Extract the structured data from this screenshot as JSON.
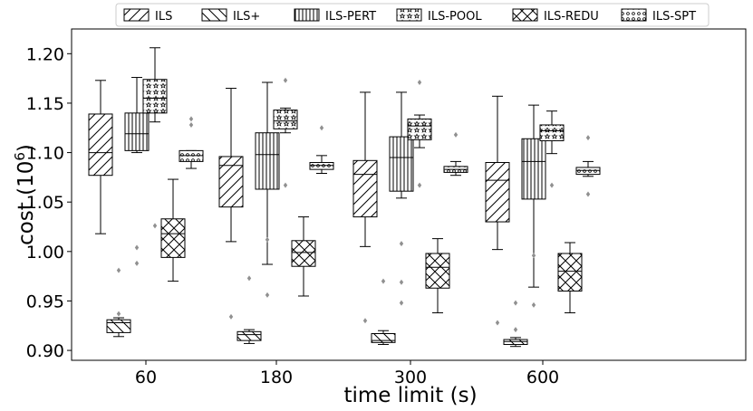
{
  "chart_data": {
    "type": "boxplot",
    "xlabel": "time limit (s)",
    "ylabel": "cost (10",
    "ylabel_sup": "6",
    "ylabel_close": ")",
    "categories": [
      "60",
      "180",
      "300",
      "600"
    ],
    "ylim": [
      0.89,
      1.225
    ],
    "yticks": [
      0.9,
      0.95,
      1.0,
      1.05,
      1.1,
      1.15,
      1.2
    ],
    "ytick_labels": [
      "0.90",
      "0.95",
      "1.00",
      "1.05",
      "1.10",
      "1.15",
      "1.20"
    ],
    "grid": false,
    "legend_position": "top",
    "series": [
      {
        "name": "ILS",
        "hatch": "diag-up",
        "boxes": [
          {
            "category": "60",
            "whisker_low": 1.018,
            "q1": 1.077,
            "median": 1.1,
            "q3": 1.139,
            "whisker_high": 1.173,
            "outliers": []
          },
          {
            "category": "180",
            "whisker_low": 1.01,
            "q1": 1.045,
            "median": 1.087,
            "q3": 1.096,
            "whisker_high": 1.165,
            "outliers": [
              0.934
            ]
          },
          {
            "category": "300",
            "whisker_low": 1.005,
            "q1": 1.035,
            "median": 1.078,
            "q3": 1.092,
            "whisker_high": 1.161,
            "outliers": [
              0.93
            ]
          },
          {
            "category": "600",
            "whisker_low": 1.002,
            "q1": 1.03,
            "median": 1.072,
            "q3": 1.09,
            "whisker_high": 1.157,
            "outliers": [
              0.928
            ]
          }
        ]
      },
      {
        "name": "ILS+",
        "hatch": "diag-down",
        "boxes": [
          {
            "category": "60",
            "whisker_low": 0.914,
            "q1": 0.918,
            "median": 0.928,
            "q3": 0.931,
            "whisker_high": 0.933,
            "outliers": [
              0.937,
              0.981
            ]
          },
          {
            "category": "180",
            "whisker_low": 0.907,
            "q1": 0.91,
            "median": 0.916,
            "q3": 0.919,
            "whisker_high": 0.921,
            "outliers": [
              0.973
            ]
          },
          {
            "category": "300",
            "whisker_low": 0.906,
            "q1": 0.908,
            "median": 0.91,
            "q3": 0.917,
            "whisker_high": 0.92,
            "outliers": [
              0.97
            ]
          },
          {
            "category": "600",
            "whisker_low": 0.904,
            "q1": 0.906,
            "median": 0.909,
            "q3": 0.911,
            "whisker_high": 0.913,
            "outliers": [
              0.921,
              0.948
            ]
          }
        ]
      },
      {
        "name": "ILS-PERT",
        "hatch": "vertical",
        "boxes": [
          {
            "category": "60",
            "whisker_low": 1.1,
            "q1": 1.102,
            "median": 1.119,
            "q3": 1.14,
            "whisker_high": 1.176,
            "outliers": [
              0.988,
              1.004
            ]
          },
          {
            "category": "180",
            "whisker_low": 0.987,
            "q1": 1.063,
            "median": 1.098,
            "q3": 1.12,
            "whisker_high": 1.171,
            "outliers": [
              0.956,
              1.012
            ]
          },
          {
            "category": "300",
            "whisker_low": 1.054,
            "q1": 1.061,
            "median": 1.095,
            "q3": 1.116,
            "whisker_high": 1.161,
            "outliers": [
              0.948,
              0.969,
              1.008
            ]
          },
          {
            "category": "600",
            "whisker_low": 0.964,
            "q1": 1.053,
            "median": 1.091,
            "q3": 1.114,
            "whisker_high": 1.148,
            "outliers": [
              0.946,
              0.996
            ]
          }
        ]
      },
      {
        "name": "ILS-POOL",
        "hatch": "stars",
        "boxes": [
          {
            "category": "60",
            "whisker_low": 1.131,
            "q1": 1.14,
            "median": 1.155,
            "q3": 1.174,
            "whisker_high": 1.206,
            "outliers": [
              1.026
            ]
          },
          {
            "category": "180",
            "whisker_low": 1.12,
            "q1": 1.124,
            "median": 1.132,
            "q3": 1.143,
            "whisker_high": 1.145,
            "outliers": [
              1.067,
              1.173
            ]
          },
          {
            "category": "300",
            "whisker_low": 1.105,
            "q1": 1.113,
            "median": 1.127,
            "q3": 1.134,
            "whisker_high": 1.138,
            "outliers": [
              1.067,
              1.171
            ]
          },
          {
            "category": "600",
            "whisker_low": 1.099,
            "q1": 1.112,
            "median": 1.122,
            "q3": 1.128,
            "whisker_high": 1.142,
            "outliers": [
              1.067
            ]
          }
        ]
      },
      {
        "name": "ILS-REDU",
        "hatch": "cross",
        "boxes": [
          {
            "category": "60",
            "whisker_low": 0.97,
            "q1": 0.994,
            "median": 1.018,
            "q3": 1.033,
            "whisker_high": 1.073,
            "outliers": []
          },
          {
            "category": "180",
            "whisker_low": 0.955,
            "q1": 0.985,
            "median": 0.999,
            "q3": 1.011,
            "whisker_high": 1.035,
            "outliers": []
          },
          {
            "category": "300",
            "whisker_low": 0.938,
            "q1": 0.963,
            "median": 0.984,
            "q3": 0.998,
            "whisker_high": 1.013,
            "outliers": []
          },
          {
            "category": "600",
            "whisker_low": 0.938,
            "q1": 0.96,
            "median": 0.98,
            "q3": 0.998,
            "whisker_high": 1.009,
            "outliers": []
          }
        ]
      },
      {
        "name": "ILS-SPT",
        "hatch": "dots",
        "boxes": [
          {
            "category": "60",
            "whisker_low": 1.084,
            "q1": 1.091,
            "median": 1.097,
            "q3": 1.102,
            "whisker_high": 1.102,
            "outliers": [
              1.128,
              1.134
            ]
          },
          {
            "category": "180",
            "whisker_low": 1.079,
            "q1": 1.083,
            "median": 1.087,
            "q3": 1.09,
            "whisker_high": 1.097,
            "outliers": [
              1.125
            ]
          },
          {
            "category": "300",
            "whisker_low": 1.077,
            "q1": 1.08,
            "median": 1.083,
            "q3": 1.086,
            "whisker_high": 1.091,
            "outliers": [
              1.118
            ]
          },
          {
            "category": "600",
            "whisker_low": 1.076,
            "q1": 1.078,
            "median": 1.082,
            "q3": 1.085,
            "whisker_high": 1.091,
            "outliers": [
              1.058,
              1.115
            ]
          }
        ]
      }
    ]
  }
}
